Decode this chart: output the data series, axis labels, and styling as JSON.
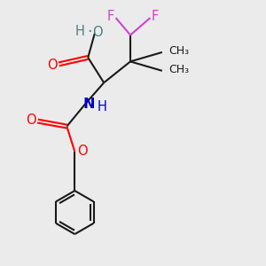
{
  "bg_color": "#ebebeb",
  "bond_color": "#1a1a1a",
  "o_color": "#ff0000",
  "n_color": "#0000cc",
  "f_color": "#cc44cc",
  "ho_color": "#4a8080",
  "line_width": 1.5,
  "figsize": [
    3.0,
    3.0
  ],
  "dpi": 100,
  "xlim": [
    0,
    10
  ],
  "ylim": [
    0,
    10
  ]
}
